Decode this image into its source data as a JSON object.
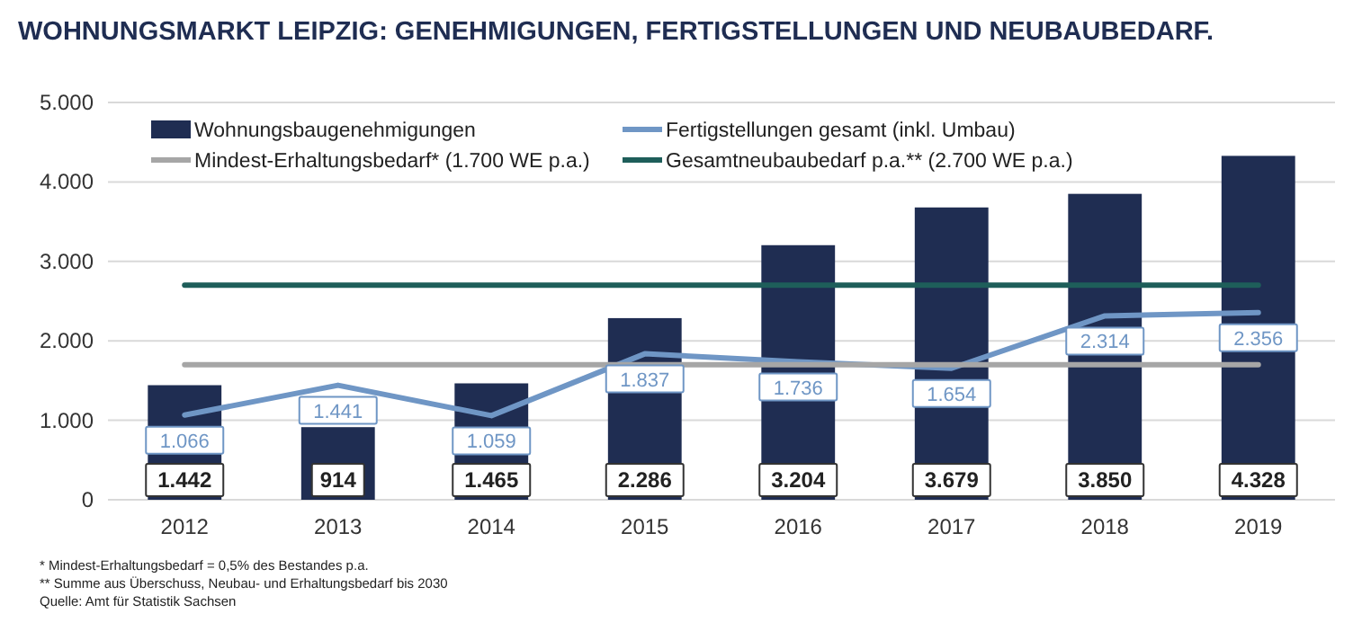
{
  "chart_data": {
    "type": "bar",
    "title": "WOHNUNGSMARKT LEIPZIG: GENEHMIGUNGEN, FERTIGSTELLUNGEN UND NEUBAUBEDARF.",
    "categories": [
      "2012",
      "2013",
      "2014",
      "2015",
      "2016",
      "2017",
      "2018",
      "2019"
    ],
    "series": [
      {
        "name": "Wohnungsbaugenehmigungen",
        "color": "#1f2d52",
        "values": [
          1442,
          914,
          1465,
          2286,
          3204,
          3679,
          3850,
          4328
        ],
        "value_labels": [
          "1.442",
          "914",
          "1.465",
          "2.286",
          "3.204",
          "3.679",
          "3.850",
          "4.328"
        ]
      },
      {
        "type": "line",
        "name": "Fertigstellungen gesamt (inkl. Umbau)",
        "color": "#6f96c5",
        "values": [
          1066,
          1441,
          1059,
          1837,
          1736,
          1654,
          2314,
          2356
        ],
        "value_labels": [
          "1.066",
          "1.441",
          "1.059",
          "1.837",
          "1.736",
          "1.654",
          "2.314",
          "2.356"
        ]
      },
      {
        "type": "line",
        "name": "Mindest-Erhaltungsbedarf* (1.700 WE p.a.)",
        "color": "#a6a6a6",
        "values": [
          1700,
          1700,
          1700,
          1700,
          1700,
          1700,
          1700,
          1700
        ]
      },
      {
        "type": "line",
        "name": "Gesamtneubaubedarf p.a.** (2.700 WE p.a.)",
        "color": "#1e5e5a",
        "values": [
          2700,
          2700,
          2700,
          2700,
          2700,
          2700,
          2700,
          2700
        ]
      }
    ],
    "ylim": [
      0,
      5000
    ],
    "yticks": [
      {
        "value": 0,
        "label": "0"
      },
      {
        "value": 1000,
        "label": "1.000"
      },
      {
        "value": 2000,
        "label": "2.000"
      },
      {
        "value": 3000,
        "label": "3.000"
      },
      {
        "value": 4000,
        "label": "4.000"
      },
      {
        "value": 5000,
        "label": "5.000"
      }
    ],
    "grid": "y",
    "legend": "top",
    "annotations": [
      "*  Mindest-Erhaltungsbedarf = 0,5% des Bestandes p.a.",
      "** Summe aus Überschuss, Neubau- und Erhaltungsbedarf bis 2030",
      "Quelle: Amt für Statistik Sachsen"
    ]
  }
}
